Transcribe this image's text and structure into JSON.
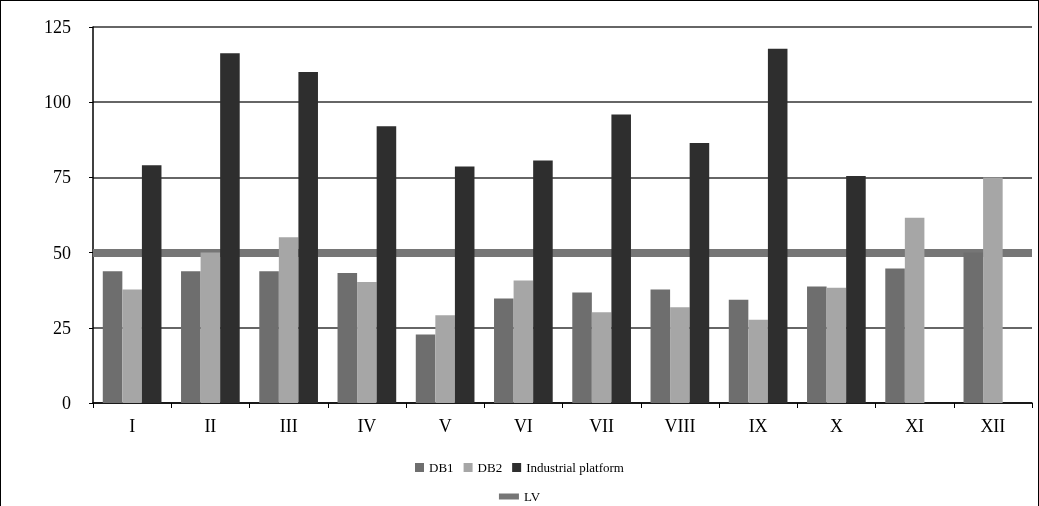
{
  "chart_data": {
    "type": "bar",
    "categories": [
      "I",
      "II",
      "III",
      "IV",
      "V",
      "VI",
      "VII",
      "VIII",
      "IX",
      "X",
      "XI",
      "XII"
    ],
    "series": [
      {
        "name": "DB1",
        "color": "#6e6e6e",
        "values": [
          43.8,
          43.8,
          43.8,
          43.2,
          22.8,
          34.7,
          36.7,
          37.7,
          34.3,
          38.7,
          44.7,
          50
        ]
      },
      {
        "name": "DB2",
        "color": "#a6a6a6",
        "values": [
          37.7,
          50,
          55.1,
          40.2,
          29.2,
          40.7,
          30.2,
          31.8,
          27.7,
          38.3,
          61.6,
          75
        ]
      },
      {
        "name": "Industrial platform",
        "color": "#2e2e2e",
        "values": [
          79,
          116.3,
          110,
          92,
          78.6,
          80.6,
          95.9,
          86.4,
          117.8,
          75.5,
          null,
          null
        ]
      }
    ],
    "ylim": [
      0,
      125
    ],
    "yticks": [
      0,
      25,
      50,
      75,
      100,
      125
    ],
    "ref_lines": [
      {
        "axis": "y",
        "value": 50,
        "label": "LV",
        "color": "#767676"
      }
    ],
    "grid": "y",
    "legend": "bottom"
  }
}
